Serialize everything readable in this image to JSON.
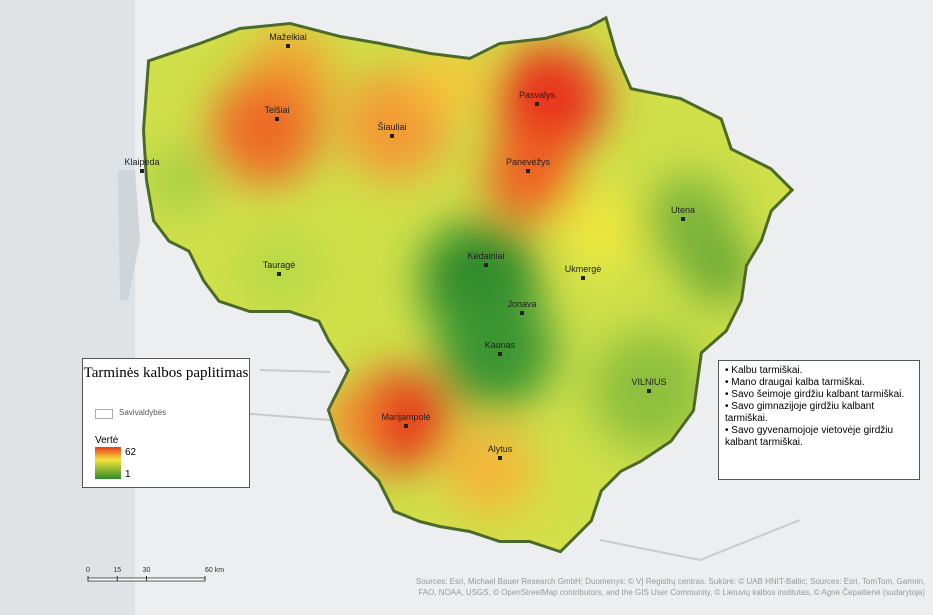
{
  "map": {
    "cities": [
      "Mažeikiai",
      "Telšiai",
      "Šiauliai",
      "Pasvalys",
      "Panevėžys",
      "Klaipėda",
      "Utena",
      "Tauragė",
      "Kėdainiai",
      "Ukmergė",
      "Jonava",
      "Kaunas",
      "VILNIUS",
      "Marijampolė",
      "Alytus"
    ],
    "legend": {
      "title": "Tarminės kalbos paplitimas",
      "layer": "Savivaldybės",
      "color_scale": {
        "label": "Vertė",
        "max": 62,
        "min": 1
      }
    },
    "notes": [
      "Kalbu tarmiškai.",
      "Mano draugai kalba tarmiškai.",
      "Savo šeimoje girdžiu kalbant tarmiškai.",
      "Savo gimnazijoje girdžiu kalbant tarmiškai.",
      "Savo gyvenamojoje vietovėje girdžiu kalbant tarmiškai."
    ],
    "scale_bar": {
      "ticks": [
        0,
        15,
        30,
        {
          "value": 60,
          "label": "60 km"
        }
      ]
    },
    "attribution": "Sources: Esri, Michael Bauer Research GmbH; Duomenys: © VĮ Registrų centras. Sukūrė: © UAB HNIT-Baltic; Sources: Esri, TomTom, Garmin, FAO, NOAA, USGS, © OpenStreetMap contributors, and the GIS User Community, © Lietuvių kalbos institutas, © Agnė Čepaitienė (sudarytoja)"
  }
}
